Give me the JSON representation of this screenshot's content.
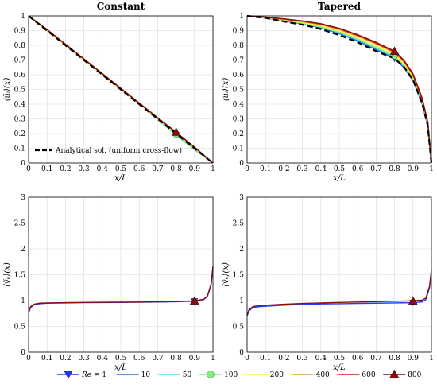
{
  "chart_data": [
    {
      "type": "line",
      "title": "Constant",
      "xlabel": "x/L",
      "ylabel": "⟨ũᵢ⟩(x)",
      "xlim": [
        0,
        1
      ],
      "ylim": [
        0,
        1
      ],
      "xticks": [
        "0",
        "0.1",
        "0.2",
        "0.3",
        "0.4",
        "0.5",
        "0.6",
        "0.7",
        "0.8",
        "0.9",
        "1"
      ],
      "yticks": [
        "0",
        "0.1",
        "0.2",
        "0.3",
        "0.4",
        "0.5",
        "0.6",
        "0.7",
        "0.8",
        "0.9",
        "1"
      ],
      "grid": true,
      "legend": "bottom-left",
      "legend_entries": [
        "Analytical sol. (uniform cross-flow)"
      ],
      "x": [
        0,
        0.1,
        0.2,
        0.3,
        0.4,
        0.5,
        0.6,
        0.7,
        0.8,
        0.9,
        1.0
      ],
      "series": [
        {
          "name": "Re = 1",
          "values": [
            1.0,
            0.9,
            0.8,
            0.7,
            0.6,
            0.5,
            0.4,
            0.3,
            0.19,
            0.09,
            0.0
          ]
        },
        {
          "name": "10",
          "values": [
            1.0,
            0.9,
            0.8,
            0.7,
            0.6,
            0.5,
            0.4,
            0.3,
            0.195,
            0.095,
            0.0
          ]
        },
        {
          "name": "50",
          "values": [
            1.0,
            0.9,
            0.8,
            0.7,
            0.6,
            0.5,
            0.4,
            0.295,
            0.19,
            0.09,
            0.0
          ]
        },
        {
          "name": "100",
          "values": [
            1.0,
            0.9,
            0.8,
            0.7,
            0.6,
            0.5,
            0.4,
            0.298,
            0.192,
            0.092,
            0.0
          ]
        },
        {
          "name": "200",
          "values": [
            1.0,
            0.9,
            0.8,
            0.7,
            0.6,
            0.5,
            0.4,
            0.3,
            0.2,
            0.1,
            0.0
          ]
        },
        {
          "name": "400",
          "values": [
            1.0,
            0.905,
            0.805,
            0.705,
            0.605,
            0.505,
            0.405,
            0.305,
            0.205,
            0.105,
            0.0
          ]
        },
        {
          "name": "600",
          "values": [
            1.0,
            0.907,
            0.807,
            0.707,
            0.607,
            0.507,
            0.407,
            0.307,
            0.207,
            0.107,
            0.0
          ]
        },
        {
          "name": "800",
          "values": [
            1.0,
            0.908,
            0.808,
            0.708,
            0.608,
            0.508,
            0.408,
            0.308,
            0.21,
            0.108,
            0.0
          ]
        },
        {
          "name": "Analytical sol. (uniform cross-flow)",
          "values": [
            1.0,
            0.9,
            0.8,
            0.7,
            0.6,
            0.5,
            0.4,
            0.3,
            0.2,
            0.1,
            0.0
          ]
        }
      ],
      "markers_at_x": 0.8
    },
    {
      "type": "line",
      "title": "Tapered",
      "xlabel": "x/L",
      "ylabel": "⟨ũᵢ⟩(x)",
      "xlim": [
        0,
        1
      ],
      "ylim": [
        0,
        1
      ],
      "xticks": [
        "0",
        "0.1",
        "0.2",
        "0.3",
        "0.4",
        "0.5",
        "0.6",
        "0.7",
        "0.8",
        "0.9",
        "1"
      ],
      "yticks": [
        "0",
        "0.1",
        "0.2",
        "0.3",
        "0.4",
        "0.5",
        "0.6",
        "0.7",
        "0.8",
        "0.9",
        "1"
      ],
      "grid": true,
      "x": [
        0,
        0.1,
        0.2,
        0.3,
        0.4,
        0.5,
        0.6,
        0.7,
        0.8,
        0.85,
        0.9,
        0.95,
        0.98,
        1.0
      ],
      "series": [
        {
          "name": "Re = 1",
          "values": [
            1.0,
            0.985,
            0.965,
            0.945,
            0.92,
            0.88,
            0.83,
            0.77,
            0.71,
            0.65,
            0.56,
            0.4,
            0.25,
            0.0
          ]
        },
        {
          "name": "10",
          "values": [
            1.0,
            0.986,
            0.967,
            0.946,
            0.92,
            0.882,
            0.832,
            0.772,
            0.715,
            0.655,
            0.565,
            0.405,
            0.255,
            0.0
          ]
        },
        {
          "name": "50",
          "values": [
            1.0,
            0.986,
            0.968,
            0.948,
            0.923,
            0.886,
            0.838,
            0.78,
            0.72,
            0.66,
            0.57,
            0.41,
            0.26,
            0.0
          ]
        },
        {
          "name": "100",
          "values": [
            1.0,
            0.987,
            0.969,
            0.95,
            0.925,
            0.89,
            0.842,
            0.785,
            0.725,
            0.665,
            0.575,
            0.415,
            0.262,
            0.0
          ]
        },
        {
          "name": "200",
          "values": [
            1.0,
            0.988,
            0.972,
            0.955,
            0.932,
            0.897,
            0.852,
            0.795,
            0.735,
            0.675,
            0.585,
            0.42,
            0.266,
            0.0
          ]
        },
        {
          "name": "400",
          "values": [
            1.0,
            0.99,
            0.976,
            0.96,
            0.94,
            0.907,
            0.862,
            0.808,
            0.748,
            0.688,
            0.595,
            0.43,
            0.272,
            0.0
          ]
        },
        {
          "name": "600",
          "values": [
            1.0,
            0.991,
            0.979,
            0.964,
            0.944,
            0.912,
            0.868,
            0.815,
            0.755,
            0.695,
            0.602,
            0.435,
            0.276,
            0.0
          ]
        },
        {
          "name": "800",
          "values": [
            1.0,
            0.992,
            0.98,
            0.966,
            0.947,
            0.915,
            0.872,
            0.82,
            0.76,
            0.7,
            0.607,
            0.44,
            0.28,
            0.0
          ]
        },
        {
          "name": "Analytical",
          "values": [
            1.0,
            0.986,
            0.962,
            0.94,
            0.91,
            0.87,
            0.82,
            0.76,
            0.71,
            0.655,
            0.565,
            0.405,
            0.255,
            0.0
          ]
        }
      ],
      "markers_at_x": 0.8
    },
    {
      "type": "line",
      "title": "",
      "xlabel": "x/L",
      "ylabel": "⟨ṽₑ⟩(x)",
      "xlim": [
        0,
        1
      ],
      "ylim": [
        0,
        3
      ],
      "xticks": [
        "0",
        "0.1",
        "0.2",
        "0.3",
        "0.4",
        "0.5",
        "0.6",
        "0.7",
        "0.8",
        "0.9",
        "1"
      ],
      "yticks": [
        "0",
        "0.5",
        "1",
        "1.5",
        "2",
        "2.5",
        "3"
      ],
      "grid": true,
      "x": [
        0,
        0.01,
        0.03,
        0.06,
        0.1,
        0.2,
        0.3,
        0.4,
        0.5,
        0.6,
        0.7,
        0.8,
        0.9,
        0.95,
        0.97,
        0.99,
        1.0
      ],
      "series": [
        {
          "name": "Re = 1",
          "values": [
            0.75,
            0.86,
            0.92,
            0.94,
            0.95,
            0.955,
            0.96,
            0.962,
            0.965,
            0.968,
            0.972,
            0.978,
            0.99,
            1.02,
            1.08,
            1.3,
            1.65
          ]
        },
        {
          "name": "800",
          "values": [
            0.77,
            0.88,
            0.93,
            0.95,
            0.955,
            0.96,
            0.965,
            0.968,
            0.97,
            0.972,
            0.976,
            0.982,
            0.995,
            1.025,
            1.09,
            1.32,
            1.65
          ]
        }
      ],
      "markers_at_x": 0.9
    },
    {
      "type": "line",
      "title": "",
      "xlabel": "x/L",
      "ylabel": "⟨ṽₑ⟩(x)",
      "xlim": [
        0,
        1
      ],
      "ylim": [
        0,
        3
      ],
      "xticks": [
        "0",
        "0.1",
        "0.2",
        "0.3",
        "0.4",
        "0.5",
        "0.6",
        "0.7",
        "0.8",
        "0.9",
        "1"
      ],
      "yticks": [
        "0",
        "0.5",
        "1",
        "1.5",
        "2",
        "2.5",
        "3"
      ],
      "grid": true,
      "x": [
        0,
        0.01,
        0.03,
        0.06,
        0.1,
        0.2,
        0.3,
        0.4,
        0.5,
        0.6,
        0.7,
        0.8,
        0.9,
        0.95,
        0.97,
        0.99,
        1.0
      ],
      "series": [
        {
          "name": "Re = 1",
          "values": [
            0.7,
            0.8,
            0.86,
            0.88,
            0.89,
            0.91,
            0.925,
            0.935,
            0.94,
            0.945,
            0.95,
            0.955,
            0.96,
            0.975,
            1.02,
            1.25,
            1.6
          ]
        },
        {
          "name": "800",
          "values": [
            0.72,
            0.82,
            0.88,
            0.9,
            0.91,
            0.93,
            0.945,
            0.955,
            0.965,
            0.972,
            0.98,
            0.987,
            0.995,
            1.01,
            1.05,
            1.28,
            1.6
          ]
        }
      ],
      "markers_at_x": 0.9
    }
  ],
  "legend": [
    {
      "label": "Re = 1",
      "color": "#1a3dff",
      "marker": "down-triangle"
    },
    {
      "label": "10",
      "color": "#1f77e0",
      "marker": "none"
    },
    {
      "label": "50",
      "color": "#46e0f0",
      "marker": "none"
    },
    {
      "label": "100",
      "color": "#7ef07a",
      "marker": "circle"
    },
    {
      "label": "200",
      "color": "#f5f542",
      "marker": "none"
    },
    {
      "label": "400",
      "color": "#f0a020",
      "marker": "none"
    },
    {
      "label": "600",
      "color": "#d41f10",
      "marker": "none"
    },
    {
      "label": "800",
      "color": "#8b0c0c",
      "marker": "up-triangle"
    }
  ],
  "analytical_color": "#000000"
}
